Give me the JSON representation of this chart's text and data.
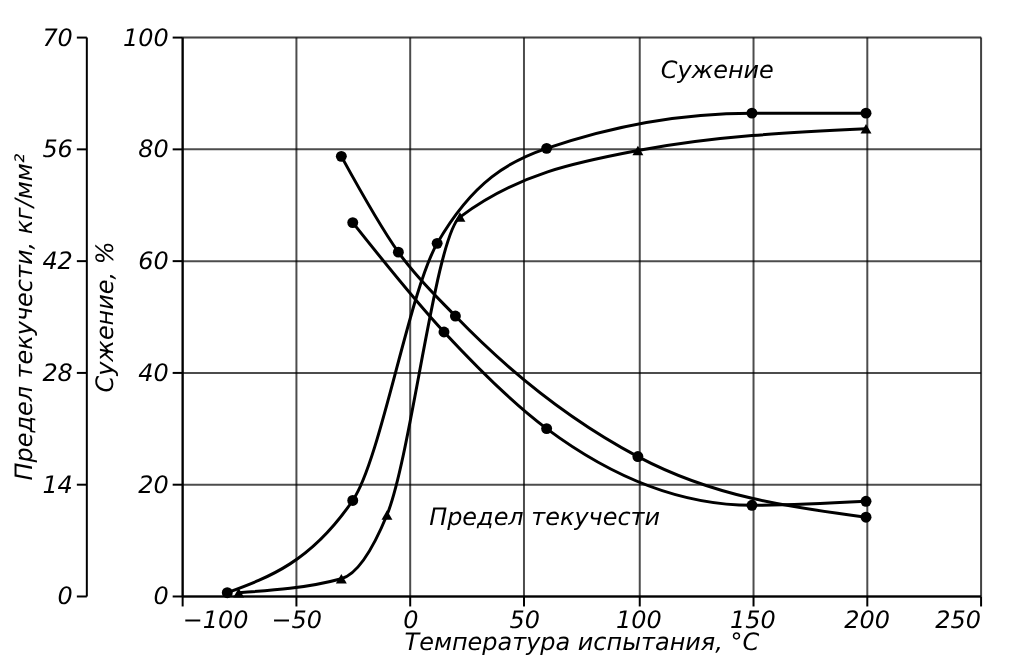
{
  "chart_data": {
    "type": "line",
    "xlabel": "Температура испытания, °C",
    "ylabel": "Предел текучести, кг/мм²",
    "y2label": "Сужение, %",
    "xlim": [
      -100,
      250
    ],
    "xticks": [
      -100,
      -50,
      0,
      50,
      100,
      150,
      200,
      250
    ],
    "ylim": [
      0,
      70
    ],
    "yticks": [
      0,
      14,
      28,
      42,
      56,
      70
    ],
    "y2lim": [
      0,
      100
    ],
    "y2ticks": [
      0,
      20,
      40,
      60,
      80,
      100
    ],
    "grid": true,
    "line_style": "solid",
    "series": [
      {
        "color": "#000000",
        "marker": "circle",
        "axis": "y",
        "x": [
          -30,
          -5,
          20,
          100,
          200
        ],
        "values": [
          55,
          43,
          35,
          17.4,
          9.8
        ]
      },
      {
        "color": "#000000",
        "marker": "circle",
        "axis": "y",
        "x": [
          -25,
          15,
          60,
          150,
          200
        ],
        "values": [
          46.7,
          33,
          20.9,
          11.3,
          11.8
        ]
      },
      {
        "color": "#000000",
        "marker": "circle",
        "axis": "y2",
        "x": [
          -80,
          -25,
          12,
          60,
          150,
          200
        ],
        "values": [
          0.5,
          17,
          63,
          80,
          86.3,
          86.3
        ]
      },
      {
        "color": "#000000",
        "marker": "triangle",
        "axis": "y2",
        "x": [
          -75,
          -30,
          -10,
          22,
          100,
          200
        ],
        "values": [
          0.5,
          3,
          14.4,
          67.7,
          79.6,
          83.5
        ]
      }
    ],
    "annotations": [
      "Сужение",
      "Предел текучести"
    ]
  }
}
